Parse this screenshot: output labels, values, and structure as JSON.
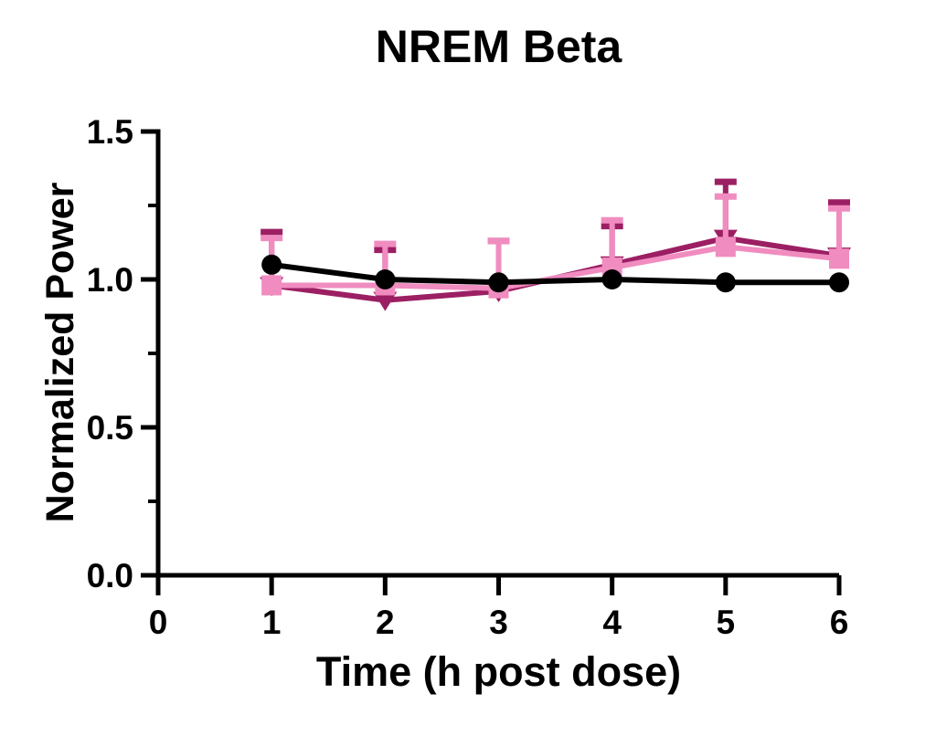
{
  "page": {
    "background": "#ffffff"
  },
  "chart_data": {
    "type": "line",
    "title": "NREM Beta",
    "xlabel": "Time (h post dose)",
    "ylabel": "Normalized Power",
    "xlim": [
      0,
      6
    ],
    "ylim": [
      0,
      1.5
    ],
    "x_ticks": [
      0,
      1,
      2,
      3,
      4,
      5,
      6
    ],
    "x_tick_labels": [
      "0",
      "1",
      "2",
      "3",
      "4",
      "5",
      "6"
    ],
    "y_ticks": [
      0.0,
      0.5,
      1.0,
      1.5
    ],
    "y_tick_labels": [
      "0.0",
      "0.5",
      "1.0",
      "1.5"
    ],
    "y_minor_ticks": [
      0.25,
      0.75,
      1.25
    ],
    "grid": false,
    "legend": "none",
    "error_bars": "upper-only",
    "x": [
      1,
      2,
      3,
      4,
      5,
      6
    ],
    "series": [
      {
        "name": "dark-magenta-triangles",
        "marker": "triangle-down",
        "color": "#9c1f63",
        "values": [
          0.98,
          0.93,
          0.96,
          1.05,
          1.14,
          1.08
        ],
        "err_upper": [
          1.16,
          1.1,
          1.13,
          1.18,
          1.33,
          1.26
        ]
      },
      {
        "name": "light-pink-squares",
        "marker": "square",
        "color": "#f08cc0",
        "values": [
          0.98,
          0.98,
          0.97,
          1.04,
          1.11,
          1.07
        ],
        "err_upper": [
          1.14,
          1.12,
          1.13,
          1.2,
          1.28,
          1.24
        ]
      },
      {
        "name": "black-circles",
        "marker": "circle",
        "color": "#000000",
        "values": [
          1.05,
          1.0,
          0.99,
          1.0,
          0.99,
          0.99
        ],
        "err_upper": [
          null,
          null,
          null,
          null,
          null,
          null
        ]
      }
    ]
  }
}
